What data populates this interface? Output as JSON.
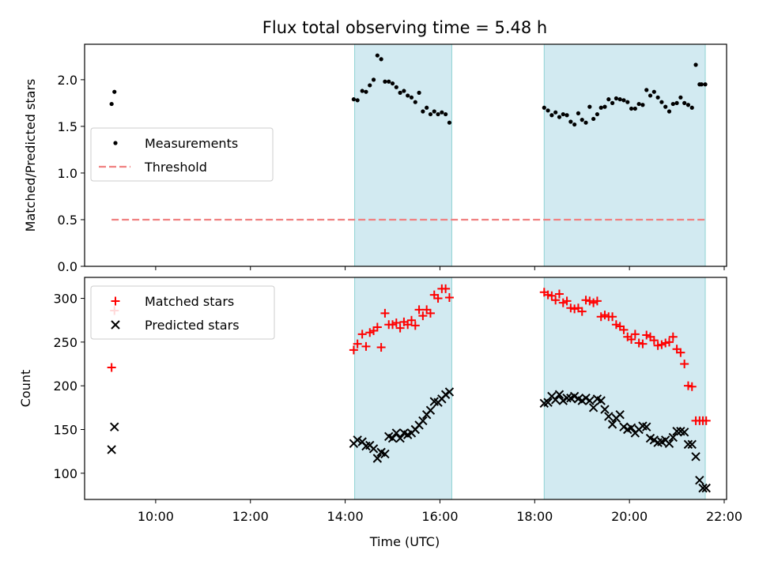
{
  "chart_data": {
    "title": "Flux total observing time = 5.48 h",
    "xlabel": "Time (UTC)",
    "x_unit": "hours UTC",
    "xlim": [
      8.5,
      22.05
    ],
    "xticks": [
      10,
      12,
      14,
      16,
      18,
      20,
      22
    ],
    "xtick_labels": [
      "10:00",
      "12:00",
      "14:00",
      "16:00",
      "18:00",
      "20:00",
      "22:00"
    ],
    "shaded_regions": [
      {
        "from": 14.2,
        "to": 16.25
      },
      {
        "from": 18.2,
        "to": 21.6
      }
    ],
    "shade_color": "#add8e6",
    "panels": [
      {
        "id": "ratio",
        "type": "scatter",
        "ylabel": "Matched/Predicted stars",
        "ylim": [
          0,
          2.38
        ],
        "yticks": [
          0,
          0.5,
          1.0,
          1.5,
          2.0
        ],
        "ytick_labels": [
          "0.0",
          "0.5",
          "1.0",
          "1.5",
          "2.0"
        ],
        "legend": "center-left",
        "series": [
          {
            "name": "Measurements",
            "marker": "dot",
            "color": "#000000",
            "x": [
              9.07,
              9.13,
              14.18,
              14.26,
              14.36,
              14.44,
              14.52,
              14.6,
              14.68,
              14.76,
              14.84,
              14.92,
              15.0,
              15.08,
              15.16,
              15.24,
              15.32,
              15.4,
              15.48,
              15.56,
              15.64,
              15.72,
              15.8,
              15.88,
              15.96,
              16.04,
              16.12,
              16.2,
              18.2,
              18.28,
              18.36,
              18.44,
              18.52,
              18.6,
              18.68,
              18.76,
              18.84,
              18.92,
              19.0,
              19.08,
              19.16,
              19.24,
              19.32,
              19.4,
              19.48,
              19.56,
              19.64,
              19.72,
              19.8,
              19.88,
              19.96,
              20.04,
              20.12,
              20.2,
              20.28,
              20.36,
              20.44,
              20.52,
              20.6,
              20.68,
              20.76,
              20.84,
              20.92,
              21.0,
              21.08,
              21.16,
              21.24,
              21.32,
              21.4,
              21.48,
              21.52,
              21.6
            ],
            "y": [
              1.74,
              1.87,
              1.79,
              1.78,
              1.88,
              1.87,
              1.94,
              2.0,
              2.26,
              2.22,
              1.98,
              1.98,
              1.96,
              1.92,
              1.86,
              1.88,
              1.83,
              1.81,
              1.76,
              1.86,
              1.66,
              1.7,
              1.63,
              1.66,
              1.63,
              1.65,
              1.63,
              1.54,
              1.7,
              1.67,
              1.62,
              1.65,
              1.6,
              1.63,
              1.62,
              1.55,
              1.52,
              1.64,
              1.57,
              1.54,
              1.71,
              1.58,
              1.63,
              1.7,
              1.71,
              1.79,
              1.75,
              1.8,
              1.79,
              1.78,
              1.76,
              1.69,
              1.69,
              1.74,
              1.73,
              1.89,
              1.83,
              1.87,
              1.81,
              1.76,
              1.71,
              1.66,
              1.74,
              1.75,
              1.81,
              1.75,
              1.73,
              1.7,
              2.16,
              1.95,
              1.95,
              1.95
            ]
          },
          {
            "name": "Threshold",
            "marker": "dashed-line",
            "color": "#f08080",
            "x": [
              9.07,
              21.6
            ],
            "y": [
              0.5,
              0.5
            ]
          }
        ]
      },
      {
        "id": "counts",
        "type": "scatter",
        "ylabel": "Count",
        "ylim": [
          70,
          324
        ],
        "yticks": [
          100,
          150,
          200,
          250,
          300
        ],
        "ytick_labels": [
          "100",
          "150",
          "200",
          "250",
          "300"
        ],
        "legend": "top-left",
        "series": [
          {
            "name": "Matched stars",
            "marker": "plus",
            "color": "#ff0000",
            "x": [
              9.07,
              9.13,
              14.18,
              14.26,
              14.36,
              14.44,
              14.52,
              14.6,
              14.68,
              14.76,
              14.84,
              14.92,
              15.0,
              15.08,
              15.16,
              15.24,
              15.32,
              15.4,
              15.48,
              15.56,
              15.64,
              15.72,
              15.8,
              15.88,
              15.96,
              16.04,
              16.12,
              16.2,
              18.2,
              18.28,
              18.36,
              18.44,
              18.52,
              18.6,
              18.68,
              18.76,
              18.84,
              18.92,
              19.0,
              19.08,
              19.16,
              19.24,
              19.32,
              19.4,
              19.48,
              19.56,
              19.64,
              19.72,
              19.8,
              19.88,
              19.96,
              20.04,
              20.12,
              20.2,
              20.28,
              20.36,
              20.44,
              20.52,
              20.6,
              20.68,
              20.76,
              20.84,
              20.92,
              21.0,
              21.08,
              21.16,
              21.24,
              21.32,
              21.4,
              21.48,
              21.55,
              21.62
            ],
            "y": [
              221,
              286,
              241,
              248,
              259,
              245,
              261,
              263,
              267,
              244,
              283,
              270,
              270,
              272,
              266,
              273,
              270,
              275,
              269,
              287,
              280,
              287,
              283,
              304,
              300,
              311,
              311,
              301,
              307,
              304,
              303,
              298,
              305,
              295,
              297,
              289,
              288,
              289,
              285,
              298,
              297,
              295,
              297,
              279,
              281,
              279,
              279,
              270,
              268,
              264,
              256,
              253,
              259,
              249,
              248,
              258,
              256,
              252,
              246,
              247,
              249,
              250,
              256,
              242,
              238,
              225,
              200,
              199,
              160,
              160,
              160,
              160
            ]
          },
          {
            "name": "Predicted stars",
            "marker": "cross",
            "color": "#000000",
            "x": [
              9.07,
              9.13,
              14.18,
              14.26,
              14.36,
              14.44,
              14.52,
              14.6,
              14.68,
              14.76,
              14.84,
              14.92,
              15.0,
              15.08,
              15.16,
              15.24,
              15.32,
              15.4,
              15.48,
              15.56,
              15.64,
              15.72,
              15.8,
              15.88,
              15.96,
              16.04,
              16.12,
              16.2,
              18.2,
              18.28,
              18.36,
              18.44,
              18.52,
              18.6,
              18.68,
              18.76,
              18.84,
              18.92,
              19.0,
              19.08,
              19.16,
              19.24,
              19.32,
              19.4,
              19.48,
              19.56,
              19.64,
              19.72,
              19.8,
              19.88,
              19.96,
              20.04,
              20.12,
              20.2,
              20.28,
              20.36,
              20.44,
              20.52,
              20.6,
              20.68,
              20.76,
              20.84,
              20.92,
              21.0,
              21.08,
              21.16,
              21.24,
              21.32,
              21.4,
              21.48,
              21.55,
              21.62
            ],
            "y": [
              127,
              153,
              134,
              138,
              136,
              131,
              132,
              128,
              117,
              124,
              122,
              142,
              140,
              146,
              140,
              146,
              144,
              146,
              150,
              155,
              160,
              167,
              172,
              182,
              181,
              185,
              190,
              193,
              180,
              181,
              188,
              184,
              190,
              183,
              186,
              186,
              188,
              185,
              183,
              186,
              183,
              175,
              185,
              183,
              173,
              165,
              156,
              163,
              167,
              153,
              150,
              152,
              146,
              150,
              154,
              153,
              140,
              138,
              135,
              136,
              138,
              134,
              141,
              148,
              148,
              147,
              133,
              133,
              119,
              92,
              83,
              83
            ]
          }
        ]
      }
    ]
  }
}
